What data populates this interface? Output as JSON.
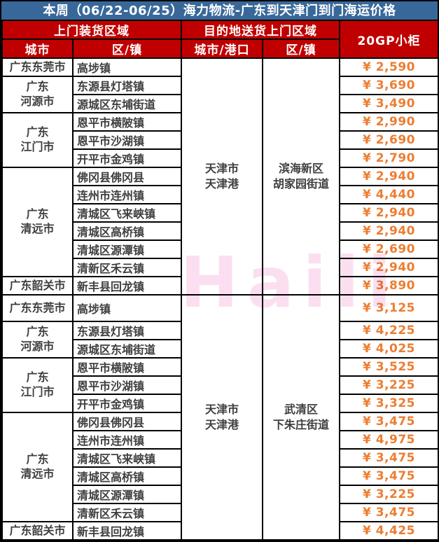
{
  "title": "本周（06/22-06/25）海力物流-广东到天津门到门海运价格",
  "watermark": "Haili",
  "columns": {
    "pickup_group": "上门装货区域",
    "delivery_group": "目的地送货上门区域",
    "container_type": "20GP小柜",
    "city": "城市",
    "district": "区/镇",
    "dest_city_port": "城市/港口",
    "dest_district": "区/镇"
  },
  "colors": {
    "title_bg": "#38689a",
    "header_bg": "#c00000",
    "price_text": "#ed7d31",
    "body_text": "#3f3f3f",
    "watermark": "#fbdff0",
    "border": "#000000"
  },
  "sections": [
    {
      "dest_city": "天津市\n天津港",
      "dest_district": "滨海新区\n胡家园街道",
      "groups": [
        {
          "city": "广东东莞市",
          "rows": [
            {
              "district": "高埗镇",
              "price": "¥ 2,590"
            }
          ]
        },
        {
          "city": "广东\n河源市",
          "rows": [
            {
              "district": "东源县灯塔镇",
              "price": "¥ 3,690"
            },
            {
              "district": "源城区东埔街道",
              "price": "¥ 3,490"
            }
          ]
        },
        {
          "city": "广东\n江门市",
          "rows": [
            {
              "district": "恩平市横陂镇",
              "price": "¥ 2,990"
            },
            {
              "district": "恩平市沙湖镇",
              "price": "¥ 2,690"
            },
            {
              "district": "开平市金鸡镇",
              "price": "¥ 2,790"
            }
          ]
        },
        {
          "city": "广东\n清远市",
          "rows": [
            {
              "district": "佛冈县佛冈县",
              "price": "¥ 2,940"
            },
            {
              "district": "连州市连州镇",
              "price": "¥ 4,440"
            },
            {
              "district": "清城区飞来峡镇",
              "price": "¥ 2,940"
            },
            {
              "district": "清城区高桥镇",
              "price": "¥ 2,940"
            },
            {
              "district": "清城区源潭镇",
              "price": "¥ 2,690"
            },
            {
              "district": "清新区禾云镇",
              "price": "¥ 2,940"
            }
          ]
        },
        {
          "city": "广东韶关市",
          "rows": [
            {
              "district": "新丰县回龙镇",
              "price": "¥ 3,890"
            }
          ]
        }
      ]
    },
    {
      "dest_city": "天津市\n天津港",
      "dest_district": "武清区\n下朱庄街道",
      "groups": [
        {
          "city": "广东东莞市",
          "rows": [
            {
              "district": "高埗镇",
              "price": "¥ 3,125"
            }
          ]
        },
        {
          "city": "广东\n河源市",
          "rows": [
            {
              "district": "东源县灯塔镇",
              "price": "¥ 4,225"
            },
            {
              "district": "源城区东埔街道",
              "price": "¥ 4,025"
            }
          ]
        },
        {
          "city": "广东\n江门市",
          "rows": [
            {
              "district": "恩平市横陂镇",
              "price": "¥ 3,525"
            },
            {
              "district": "恩平市沙湖镇",
              "price": "¥ 3,225"
            },
            {
              "district": "开平市金鸡镇",
              "price": "¥ 3,325"
            }
          ]
        },
        {
          "city": "广东\n清远市",
          "rows": [
            {
              "district": "佛冈县佛冈县",
              "price": "¥ 3,475"
            },
            {
              "district": "连州市连州镇",
              "price": "¥ 4,975"
            },
            {
              "district": "清城区飞来峡镇",
              "price": "¥ 3,475"
            },
            {
              "district": "清城区高桥镇",
              "price": "¥ 3,475"
            },
            {
              "district": "清城区源潭镇",
              "price": "¥ 3,225"
            },
            {
              "district": "清新区禾云镇",
              "price": "¥ 3,475"
            }
          ]
        },
        {
          "city": "广东韶关市",
          "rows": [
            {
              "district": "新丰县回龙镇",
              "price": "¥ 4,425"
            }
          ]
        }
      ]
    }
  ]
}
